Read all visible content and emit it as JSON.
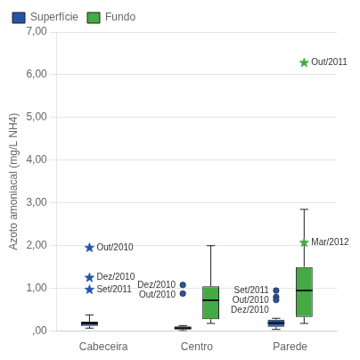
{
  "chart_data": {
    "type": "box",
    "ylabel": "Azoto amoniacal (mg/L NH4)",
    "categories": [
      "Cabeceira",
      "Centro",
      "Parede"
    ],
    "ylim": [
      0,
      7.0
    ],
    "yticks": [
      {
        "value": 0.0,
        "label": ",00"
      },
      {
        "value": 1.0,
        "label": "1,00"
      },
      {
        "value": 2.0,
        "label": "2,00"
      },
      {
        "value": 3.0,
        "label": "3,00"
      },
      {
        "value": 4.0,
        "label": "4,00"
      },
      {
        "value": 5.0,
        "label": "5,00"
      },
      {
        "value": 6.0,
        "label": "6,00"
      },
      {
        "value": 7.0,
        "label": "7,00"
      }
    ],
    "grid": true,
    "legend": "upper left",
    "series": [
      {
        "name": "Superfície",
        "color": "#2255aa",
        "boxes": [
          {
            "q1": 0.12,
            "median": 0.18,
            "q3": 0.22,
            "whisker_low": 0.07,
            "whisker_high": 0.38,
            "outliers": [
              {
                "value": 1.95,
                "label": "Out/2010",
                "marker": "star"
              },
              {
                "value": 1.25,
                "label": "Dez/2010",
                "marker": "star"
              },
              {
                "value": 0.97,
                "label": "Set/2011",
                "marker": "star"
              }
            ]
          },
          {
            "q1": 0.04,
            "median": 0.07,
            "q3": 0.11,
            "whisker_low": 0.01,
            "whisker_high": 0.13,
            "outliers": [
              {
                "value": 1.08,
                "label": "Dez/2010",
                "marker": "circle"
              },
              {
                "value": 0.88,
                "label": "Out/2010",
                "marker": "circle"
              }
            ]
          },
          {
            "q1": 0.1,
            "median": 0.19,
            "q3": 0.27,
            "whisker_low": 0.04,
            "whisker_high": 0.3,
            "outliers": [
              {
                "value": 0.8,
                "label": "Out/2010",
                "marker": "circle"
              },
              {
                "value": 0.95,
                "label": "Set/2011",
                "marker": "circle"
              },
              {
                "value": 0.73,
                "label": "Dez/2010",
                "marker": "circle"
              }
            ]
          }
        ]
      },
      {
        "name": "Fundo",
        "color": "#44aa44",
        "boxes": [
          null,
          {
            "q1": 0.28,
            "median": 0.72,
            "q3": 1.05,
            "whisker_low": 0.18,
            "whisker_high": 2.0,
            "outliers": []
          },
          {
            "q1": 0.33,
            "median": 0.95,
            "q3": 1.5,
            "whisker_low": 0.18,
            "whisker_high": 2.85,
            "outliers": [
              {
                "value": 6.28,
                "label": "Out/2011",
                "marker": "star"
              },
              {
                "value": 2.07,
                "label": "Mar/2012",
                "marker": "star"
              }
            ]
          }
        ]
      }
    ]
  }
}
